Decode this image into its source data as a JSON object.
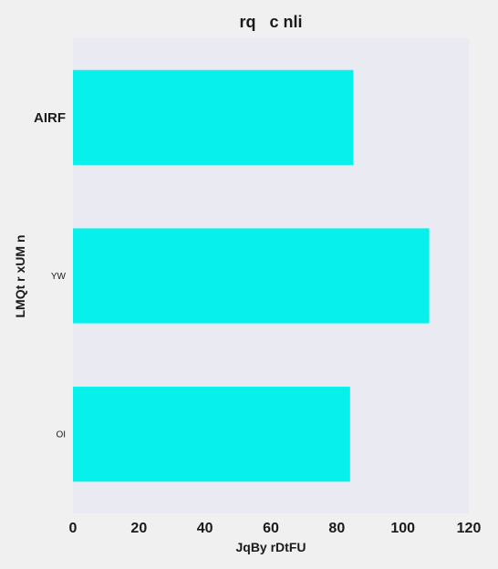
{
  "chart_data": {
    "type": "bar",
    "orientation": "horizontal",
    "title": "rq   c nli",
    "xlabel": "JqBy rDtFU",
    "ylabel": "LMQt r xUM n",
    "categories": [
      "AIRF",
      "YW",
      "OI"
    ],
    "values": [
      85,
      108,
      84
    ],
    "xlim": [
      0,
      120
    ],
    "xticks": [
      "0",
      "20",
      "40",
      "60",
      "80",
      "100",
      "120"
    ],
    "grid": false,
    "bar_color": "#08F0EC",
    "plot_background": "#EAEAF2"
  }
}
